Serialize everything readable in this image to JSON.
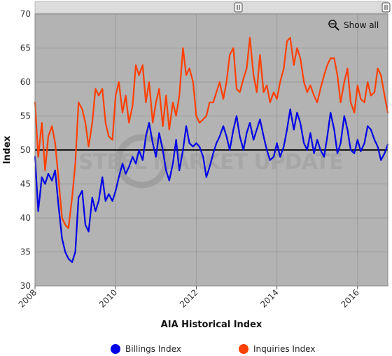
{
  "chart_data": {
    "type": "line",
    "title": "",
    "xlabel": "AIA Historical Index",
    "ylabel": "Index",
    "xlim": [
      2008.0,
      2016.75
    ],
    "ylim": [
      30,
      70
    ],
    "x_ticks": [
      "2008",
      "2010",
      "2012",
      "2014",
      "2016"
    ],
    "y_ticks": [
      "30",
      "35",
      "40",
      "45",
      "50",
      "55",
      "60",
      "65",
      "70"
    ],
    "reference_line": 50,
    "grid": true,
    "legend_position": "bottom",
    "watermark_text": "STEEL MARKET UPDATE",
    "zoom_control": {
      "label": "Show all",
      "icon": "zoom-out-icon"
    },
    "colors": {
      "plot_bg": "#b3b3b3",
      "billings": "#0000e6",
      "inquiries": "#ff4000",
      "reference": "#000000"
    },
    "series": [
      {
        "name": "Billings Index",
        "color": "#0000e6",
        "x": [
          2008.0,
          2008.08,
          2008.17,
          2008.25,
          2008.33,
          2008.42,
          2008.5,
          2008.58,
          2008.67,
          2008.75,
          2008.83,
          2008.92,
          2009.0,
          2009.08,
          2009.17,
          2009.25,
          2009.33,
          2009.42,
          2009.5,
          2009.58,
          2009.67,
          2009.75,
          2009.83,
          2009.92,
          2010.0,
          2010.08,
          2010.17,
          2010.25,
          2010.33,
          2010.42,
          2010.5,
          2010.58,
          2010.67,
          2010.75,
          2010.83,
          2010.92,
          2011.0,
          2011.08,
          2011.17,
          2011.25,
          2011.33,
          2011.42,
          2011.5,
          2011.58,
          2011.67,
          2011.75,
          2011.83,
          2011.92,
          2012.0,
          2012.08,
          2012.17,
          2012.25,
          2012.33,
          2012.42,
          2012.5,
          2012.58,
          2012.67,
          2012.75,
          2012.83,
          2012.92,
          2013.0,
          2013.08,
          2013.17,
          2013.25,
          2013.33,
          2013.42,
          2013.5,
          2013.58,
          2013.67,
          2013.75,
          2013.83,
          2013.92,
          2014.0,
          2014.08,
          2014.17,
          2014.25,
          2014.33,
          2014.42,
          2014.5,
          2014.58,
          2014.67,
          2014.75,
          2014.83,
          2014.92,
          2015.0,
          2015.08,
          2015.17,
          2015.25,
          2015.33,
          2015.42,
          2015.5,
          2015.58,
          2015.67,
          2015.75,
          2015.83,
          2015.92,
          2016.0,
          2016.08,
          2016.17,
          2016.25,
          2016.33,
          2016.42,
          2016.5,
          2016.58,
          2016.67,
          2016.75
        ],
        "values": [
          49.0,
          41.0,
          46.0,
          45.0,
          46.5,
          45.5,
          47.0,
          42.0,
          37.0,
          35.0,
          34.0,
          33.5,
          35.0,
          43.0,
          44.0,
          39.0,
          38.0,
          43.0,
          41.0,
          42.5,
          46.0,
          42.5,
          43.5,
          42.5,
          44.0,
          46.0,
          48.0,
          46.5,
          47.5,
          49.0,
          48.0,
          50.0,
          48.5,
          52.0,
          54.0,
          51.0,
          49.0,
          52.5,
          50.0,
          47.0,
          45.5,
          48.0,
          51.5,
          47.0,
          50.0,
          53.5,
          51.0,
          50.5,
          51.0,
          50.5,
          49.0,
          46.0,
          47.5,
          49.5,
          51.0,
          52.0,
          53.5,
          52.0,
          50.0,
          53.0,
          55.0,
          52.0,
          50.0,
          52.5,
          54.0,
          51.5,
          53.0,
          54.5,
          52.0,
          50.0,
          48.5,
          49.0,
          51.0,
          49.0,
          50.5,
          53.0,
          56.0,
          53.0,
          55.5,
          54.0,
          51.0,
          50.0,
          52.5,
          49.5,
          51.5,
          50.0,
          49.0,
          52.0,
          55.5,
          53.0,
          49.5,
          51.0,
          55.0,
          53.0,
          50.0,
          49.5,
          51.5,
          49.8,
          51.0,
          53.5,
          53.0,
          51.5,
          50.5,
          48.5,
          49.5,
          50.8
        ]
      },
      {
        "name": "Inquiries Index",
        "color": "#ff4000",
        "x": [
          2008.0,
          2008.08,
          2008.17,
          2008.25,
          2008.33,
          2008.42,
          2008.5,
          2008.58,
          2008.67,
          2008.75,
          2008.83,
          2008.92,
          2009.0,
          2009.08,
          2009.17,
          2009.25,
          2009.33,
          2009.42,
          2009.5,
          2009.58,
          2009.67,
          2009.75,
          2009.83,
          2009.92,
          2010.0,
          2010.08,
          2010.17,
          2010.25,
          2010.33,
          2010.42,
          2010.5,
          2010.58,
          2010.67,
          2010.75,
          2010.83,
          2010.92,
          2011.0,
          2011.08,
          2011.17,
          2011.25,
          2011.33,
          2011.42,
          2011.5,
          2011.58,
          2011.67,
          2011.75,
          2011.83,
          2011.92,
          2012.0,
          2012.08,
          2012.17,
          2012.25,
          2012.33,
          2012.42,
          2012.5,
          2012.58,
          2012.67,
          2012.75,
          2012.83,
          2012.92,
          2013.0,
          2013.08,
          2013.17,
          2013.25,
          2013.33,
          2013.42,
          2013.5,
          2013.58,
          2013.67,
          2013.75,
          2013.83,
          2013.92,
          2014.0,
          2014.08,
          2014.17,
          2014.25,
          2014.33,
          2014.42,
          2014.5,
          2014.58,
          2014.67,
          2014.75,
          2014.83,
          2014.92,
          2015.0,
          2015.08,
          2015.17,
          2015.25,
          2015.33,
          2015.42,
          2015.5,
          2015.58,
          2015.67,
          2015.75,
          2015.83,
          2015.92,
          2016.0,
          2016.08,
          2016.17,
          2016.25,
          2016.33,
          2016.42,
          2016.5,
          2016.58,
          2016.67,
          2016.75
        ],
        "values": [
          57.0,
          49.0,
          54.0,
          47.0,
          52.0,
          53.5,
          51.0,
          46.0,
          40.0,
          39.0,
          38.5,
          43.0,
          48.0,
          57.0,
          56.0,
          54.0,
          50.5,
          54.0,
          59.0,
          58.0,
          59.0,
          54.0,
          52.0,
          51.5,
          58.0,
          60.0,
          55.5,
          58.0,
          54.0,
          56.5,
          62.5,
          61.0,
          62.5,
          57.0,
          60.0,
          54.0,
          57.0,
          59.0,
          53.5,
          58.0,
          53.0,
          57.0,
          55.0,
          58.0,
          65.0,
          61.0,
          62.0,
          60.0,
          55.0,
          54.0,
          54.5,
          55.0,
          57.0,
          57.0,
          58.5,
          60.0,
          57.5,
          60.0,
          64.0,
          65.0,
          59.0,
          58.5,
          60.5,
          62.0,
          66.5,
          61.0,
          58.5,
          64.0,
          58.5,
          59.5,
          57.0,
          58.5,
          57.5,
          60.0,
          62.0,
          66.0,
          66.5,
          62.5,
          65.0,
          63.5,
          60.0,
          58.5,
          59.5,
          58.0,
          57.0,
          59.0,
          61.0,
          62.5,
          63.5,
          63.5,
          61.0,
          57.0,
          60.0,
          62.0,
          57.0,
          55.5,
          59.5,
          57.5,
          57.0,
          60.0,
          58.0,
          58.5,
          62.0,
          61.0,
          58.0,
          55.5
        ]
      }
    ]
  }
}
